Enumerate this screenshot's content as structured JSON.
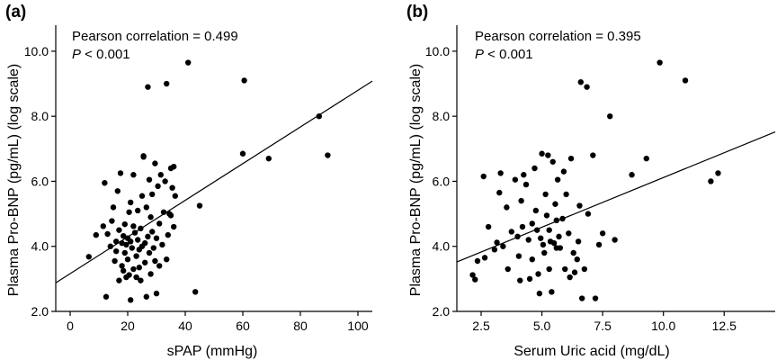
{
  "chart_data": [
    {
      "type": "scatter",
      "panel_label": "(a)",
      "xlabel": "sPAP (mmHg)",
      "ylabel": "Plasma Pro-BNP (pg/mL) (log scale)",
      "xlim": [
        -5,
        105
      ],
      "ylim": [
        2.0,
        10.8
      ],
      "xticks": [
        0,
        20,
        40,
        60,
        80,
        100
      ],
      "xtick_labels": [
        "0",
        "20",
        "40",
        "60",
        "80",
        "100"
      ],
      "yticks": [
        2,
        4,
        6,
        8,
        10
      ],
      "ytick_labels": [
        "2.0",
        "4.0",
        "6.0",
        "8.0",
        "10.0"
      ],
      "annotation": {
        "line1": "Pearson correlation = 0.499",
        "p_label": "P",
        "p_value": " < 0.001"
      },
      "regression": {
        "x": [
          -5,
          105
        ],
        "y": [
          2.88,
          9.08
        ]
      },
      "points": [
        [
          6.5,
          3.68
        ],
        [
          9,
          4.35
        ],
        [
          11.5,
          4.62
        ],
        [
          12,
          5.95
        ],
        [
          12.5,
          2.45
        ],
        [
          13,
          4.38
        ],
        [
          14,
          4.0
        ],
        [
          14.5,
          4.78
        ],
        [
          15,
          5.2
        ],
        [
          15.5,
          3.55
        ],
        [
          16,
          4.15
        ],
        [
          16,
          3.85
        ],
        [
          16.5,
          5.7
        ],
        [
          17,
          4.5
        ],
        [
          17,
          2.95
        ],
        [
          17.5,
          6.25
        ],
        [
          18,
          4.1
        ],
        [
          18,
          3.4
        ],
        [
          18.5,
          3.25
        ],
        [
          18.5,
          4.32
        ],
        [
          19,
          4.68
        ],
        [
          19,
          3.8
        ],
        [
          19.5,
          3.05
        ],
        [
          19.5,
          4.05
        ],
        [
          20,
          4.25
        ],
        [
          20,
          3.6
        ],
        [
          20.5,
          5.05
        ],
        [
          20.5,
          3.12
        ],
        [
          21,
          4.15
        ],
        [
          21,
          5.35
        ],
        [
          21,
          2.35
        ],
        [
          21.5,
          3.95
        ],
        [
          22,
          4.62
        ],
        [
          22,
          6.2
        ],
        [
          22,
          3.3
        ],
        [
          22.5,
          4.42
        ],
        [
          23,
          3.7
        ],
        [
          23,
          3.05
        ],
        [
          23.5,
          5.1
        ],
        [
          23.5,
          4.2
        ],
        [
          24,
          3.9
        ],
        [
          24,
          3.35
        ],
        [
          24.5,
          4.55
        ],
        [
          24.5,
          2.95
        ],
        [
          25,
          5.55
        ],
        [
          25,
          4.0
        ],
        [
          25.5,
          6.75
        ],
        [
          25.5,
          6.78
        ],
        [
          26,
          4.1
        ],
        [
          26,
          3.5
        ],
        [
          26.5,
          5.2
        ],
        [
          26.5,
          2.45
        ],
        [
          27,
          4.3
        ],
        [
          27,
          8.9
        ],
        [
          27.5,
          3.8
        ],
        [
          27.5,
          6.05
        ],
        [
          28,
          4.9
        ],
        [
          28,
          3.15
        ],
        [
          28.5,
          5.6
        ],
        [
          28.5,
          4.45
        ],
        [
          29,
          3.95
        ],
        [
          29.5,
          6.55
        ],
        [
          29.5,
          3.55
        ],
        [
          30,
          4.25
        ],
        [
          30,
          2.55
        ],
        [
          30.5,
          5.85
        ],
        [
          31,
          4.7
        ],
        [
          31,
          3.4
        ],
        [
          31.5,
          6.2
        ],
        [
          32,
          4.05
        ],
        [
          32.5,
          5.05
        ],
        [
          33,
          6.0
        ],
        [
          33.5,
          9.0
        ],
        [
          33.5,
          3.6
        ],
        [
          34,
          4.35
        ],
        [
          34.5,
          5.0
        ],
        [
          35,
          6.4
        ],
        [
          35,
          4.95
        ],
        [
          35.5,
          5.8
        ],
        [
          36,
          6.45
        ],
        [
          36,
          4.6
        ],
        [
          36.5,
          5.55
        ],
        [
          41,
          9.65
        ],
        [
          43.5,
          2.6
        ],
        [
          45,
          5.25
        ],
        [
          60,
          6.85
        ],
        [
          60.5,
          9.1
        ],
        [
          69,
          6.7
        ],
        [
          86.5,
          8.0
        ],
        [
          89.5,
          6.8
        ]
      ]
    },
    {
      "type": "scatter",
      "panel_label": "(b)",
      "xlabel": "Serum Uric acid (mg/dL)",
      "ylabel": "Plasma Pro-BNP (pg/mL) (log scale)",
      "xlim": [
        1.5,
        14.6
      ],
      "ylim": [
        2.0,
        10.8
      ],
      "xticks": [
        2.5,
        5.0,
        7.5,
        10.0,
        12.5
      ],
      "xtick_labels": [
        "2.5",
        "5.0",
        "7.5",
        "10.0",
        "12.5"
      ],
      "yticks": [
        2,
        4,
        6,
        8,
        10
      ],
      "ytick_labels": [
        "2.0",
        "4.0",
        "6.0",
        "8.0",
        "10.0"
      ],
      "annotation": {
        "line1": "Pearson correlation = 0.395",
        "p_label": "P",
        "p_value": " < 0.001"
      },
      "regression": {
        "x": [
          1.5,
          14.6
        ],
        "y": [
          3.52,
          7.52
        ]
      },
      "points": [
        [
          2.15,
          3.12
        ],
        [
          2.25,
          2.98
        ],
        [
          2.35,
          3.55
        ],
        [
          2.6,
          6.15
        ],
        [
          2.65,
          3.65
        ],
        [
          2.8,
          4.6
        ],
        [
          3.05,
          3.9
        ],
        [
          3.15,
          4.12
        ],
        [
          3.25,
          5.65
        ],
        [
          3.3,
          6.25
        ],
        [
          3.4,
          4.0
        ],
        [
          3.55,
          5.2
        ],
        [
          3.6,
          3.3
        ],
        [
          3.75,
          4.45
        ],
        [
          3.9,
          6.05
        ],
        [
          4.0,
          4.3
        ],
        [
          4.05,
          3.7
        ],
        [
          4.1,
          2.95
        ],
        [
          4.15,
          5.4
        ],
        [
          4.2,
          4.6
        ],
        [
          4.25,
          6.2
        ],
        [
          4.35,
          5.9
        ],
        [
          4.45,
          4.2
        ],
        [
          4.5,
          3.0
        ],
        [
          4.6,
          4.7
        ],
        [
          4.6,
          3.6
        ],
        [
          4.7,
          6.4
        ],
        [
          4.75,
          5.1
        ],
        [
          4.8,
          4.5
        ],
        [
          4.85,
          3.15
        ],
        [
          4.9,
          2.55
        ],
        [
          4.95,
          4.25
        ],
        [
          5.0,
          6.85
        ],
        [
          5.05,
          4.05
        ],
        [
          5.1,
          3.8
        ],
        [
          5.15,
          5.6
        ],
        [
          5.2,
          4.95
        ],
        [
          5.25,
          6.8
        ],
        [
          5.3,
          4.5
        ],
        [
          5.3,
          3.3
        ],
        [
          5.35,
          4.15
        ],
        [
          5.4,
          2.6
        ],
        [
          5.45,
          6.6
        ],
        [
          5.5,
          4.1
        ],
        [
          5.55,
          5.3
        ],
        [
          5.6,
          3.95
        ],
        [
          5.6,
          4.8
        ],
        [
          5.65,
          6.05
        ],
        [
          5.7,
          4.3
        ],
        [
          5.75,
          3.95
        ],
        [
          5.85,
          4.85
        ],
        [
          5.9,
          6.3
        ],
        [
          5.95,
          3.3
        ],
        [
          6.0,
          5.6
        ],
        [
          6.1,
          4.4
        ],
        [
          6.15,
          3.05
        ],
        [
          6.2,
          6.7
        ],
        [
          6.3,
          3.8
        ],
        [
          6.35,
          3.2
        ],
        [
          6.45,
          3.6
        ],
        [
          6.5,
          4.15
        ],
        [
          6.55,
          5.25
        ],
        [
          6.6,
          9.05
        ],
        [
          6.65,
          2.4
        ],
        [
          6.75,
          3.3
        ],
        [
          6.85,
          8.9
        ],
        [
          6.9,
          5.0
        ],
        [
          7.1,
          6.8
        ],
        [
          7.2,
          2.4
        ],
        [
          7.35,
          4.05
        ],
        [
          7.5,
          4.4
        ],
        [
          7.8,
          8.0
        ],
        [
          8.0,
          4.2
        ],
        [
          8.7,
          6.2
        ],
        [
          9.3,
          6.7
        ],
        [
          9.85,
          9.65
        ],
        [
          10.9,
          9.1
        ],
        [
          11.95,
          6.0
        ],
        [
          12.25,
          6.25
        ]
      ]
    }
  ]
}
